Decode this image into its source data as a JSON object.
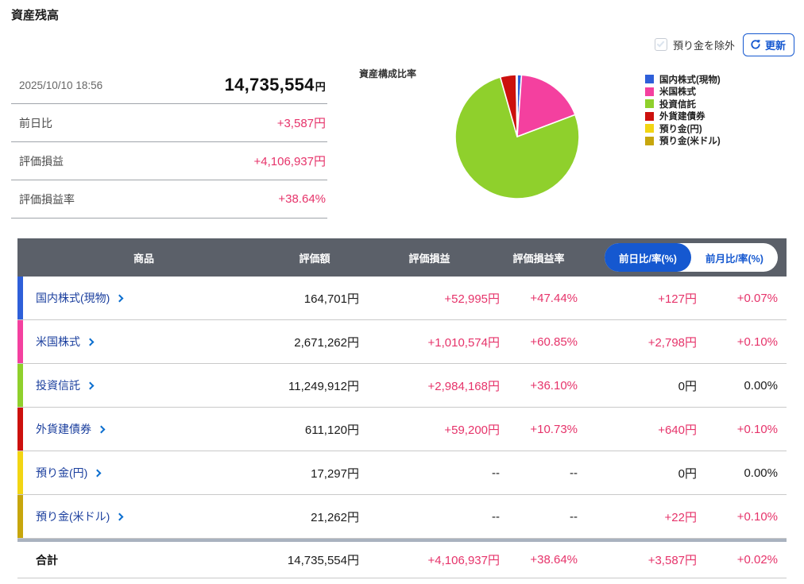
{
  "colors": {
    "accent_pink": "#e6336a",
    "navy_link": "#1b3f9e",
    "chevron_blue": "#0b6ecf",
    "header_bg": "#5b6069",
    "toggle_blue": "#1558d0",
    "total_border": "#a9b2bf"
  },
  "page_title": "資産残高",
  "top_controls": {
    "exclude_checkbox_label": "預り金を除外",
    "exclude_checkbox_checked": false,
    "refresh_button_label": "更新"
  },
  "summary": {
    "timestamp": "2025/10/10 18:56",
    "total_amount": "14,735,554",
    "currency_suffix": "円",
    "rows": [
      {
        "label": "前日比",
        "value": "+3,587円"
      },
      {
        "label": "評価損益",
        "value": "+4,106,937円"
      },
      {
        "label": "評価損益率",
        "value": "+38.64%"
      }
    ]
  },
  "chart_data": {
    "type": "pie",
    "title": "資産構成比率",
    "legend_position": "right",
    "start_angle": "top, clockwise",
    "segments": [
      {
        "label": "国内株式(現物)",
        "value_yen": 164701,
        "percent": 1.12,
        "color": "#2e5fd9"
      },
      {
        "label": "米国株式",
        "value_yen": 2671262,
        "percent": 18.13,
        "color": "#f4409f"
      },
      {
        "label": "投資信託",
        "value_yen": 11249912,
        "percent": 76.34,
        "color": "#8fd02c"
      },
      {
        "label": "外貨建債券",
        "value_yen": 611120,
        "percent": 4.15,
        "color": "#cc100d"
      },
      {
        "label": "預り金(円)",
        "value_yen": 17297,
        "percent": 0.12,
        "color": "#f2d513"
      },
      {
        "label": "預り金(米ドル)",
        "value_yen": 21262,
        "percent": 0.14,
        "color": "#c7a60c"
      }
    ]
  },
  "table": {
    "headers": [
      "商品",
      "評価額",
      "評価損益",
      "評価損益率"
    ],
    "toggle": {
      "active_label": "前日比/率(%)",
      "inactive_label": "前月比/率(%)"
    },
    "rows": [
      {
        "product": "国内株式(現物)",
        "color": "#2e5fd9",
        "valuation": "164,701円",
        "pl": "+52,995円",
        "pl_rate": "+47.44%",
        "day_change": "+127円",
        "day_change_rate": "+0.07%"
      },
      {
        "product": "米国株式",
        "color": "#f4409f",
        "valuation": "2,671,262円",
        "pl": "+1,010,574円",
        "pl_rate": "+60.85%",
        "day_change": "+2,798円",
        "day_change_rate": "+0.10%"
      },
      {
        "product": "投資信託",
        "color": "#8fd02c",
        "valuation": "11,249,912円",
        "pl": "+2,984,168円",
        "pl_rate": "+36.10%",
        "day_change": "0円",
        "day_change_rate": "0.00%"
      },
      {
        "product": "外貨建債券",
        "color": "#cc100d",
        "valuation": "611,120円",
        "pl": "+59,200円",
        "pl_rate": "+10.73%",
        "day_change": "+640円",
        "day_change_rate": "+0.10%"
      },
      {
        "product": "預り金(円)",
        "color": "#f2d513",
        "valuation": "17,297円",
        "pl": "--",
        "pl_rate": "--",
        "day_change": "0円",
        "day_change_rate": "0.00%"
      },
      {
        "product": "預り金(米ドル)",
        "color": "#c7a60c",
        "valuation": "21,262円",
        "pl": "--",
        "pl_rate": "--",
        "day_change": "+22円",
        "day_change_rate": "+0.10%"
      }
    ],
    "total": {
      "label": "合計",
      "valuation": "14,735,554円",
      "pl": "+4,106,937円",
      "pl_rate": "+38.64%",
      "day_change": "+3,587円",
      "day_change_rate": "+0.02%"
    }
  }
}
